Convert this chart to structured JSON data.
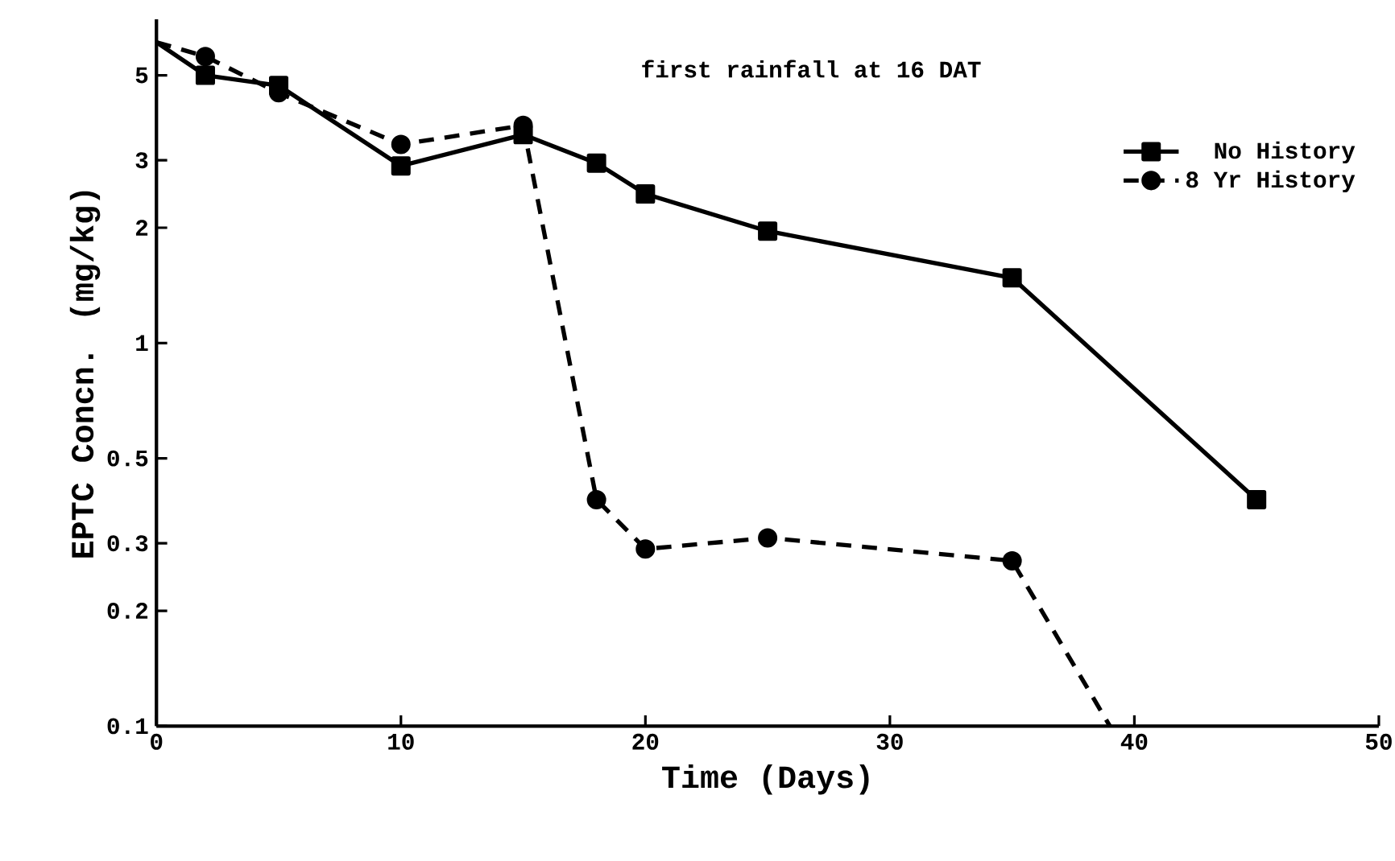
{
  "chart_data": {
    "type": "line",
    "xlabel": "Time (Days)",
    "ylabel": "EPTC Concn. (mg/kg)",
    "annotations": [
      "first rainfall at 16 DAT"
    ],
    "log": "y",
    "xlim": [
      0,
      50
    ],
    "ylim": [
      0.1,
      7
    ],
    "xticks": [
      0,
      10,
      20,
      30,
      40,
      50
    ],
    "yticks": [
      0.1,
      0.2,
      0.3,
      0.5,
      1,
      2,
      3,
      5
    ],
    "legend": "top right",
    "grid": false,
    "series": [
      {
        "name": "No History",
        "color": "#000000",
        "marker": "square",
        "line_style": "solid",
        "x": [
          0,
          2,
          5,
          10,
          15,
          18,
          20,
          25,
          35,
          45
        ],
        "values": [
          6.1,
          5.0,
          4.7,
          2.9,
          3.5,
          2.95,
          2.45,
          1.96,
          1.48,
          0.39
        ]
      },
      {
        "name": "8 Yr History",
        "color": "#000000",
        "marker": "circle",
        "line_style": "dashed",
        "x": [
          0,
          2,
          5,
          10,
          15,
          18,
          20,
          25,
          35,
          39
        ],
        "values": [
          6.1,
          5.6,
          4.5,
          3.3,
          3.7,
          0.39,
          0.29,
          0.31,
          0.27,
          0.1
        ]
      }
    ]
  }
}
